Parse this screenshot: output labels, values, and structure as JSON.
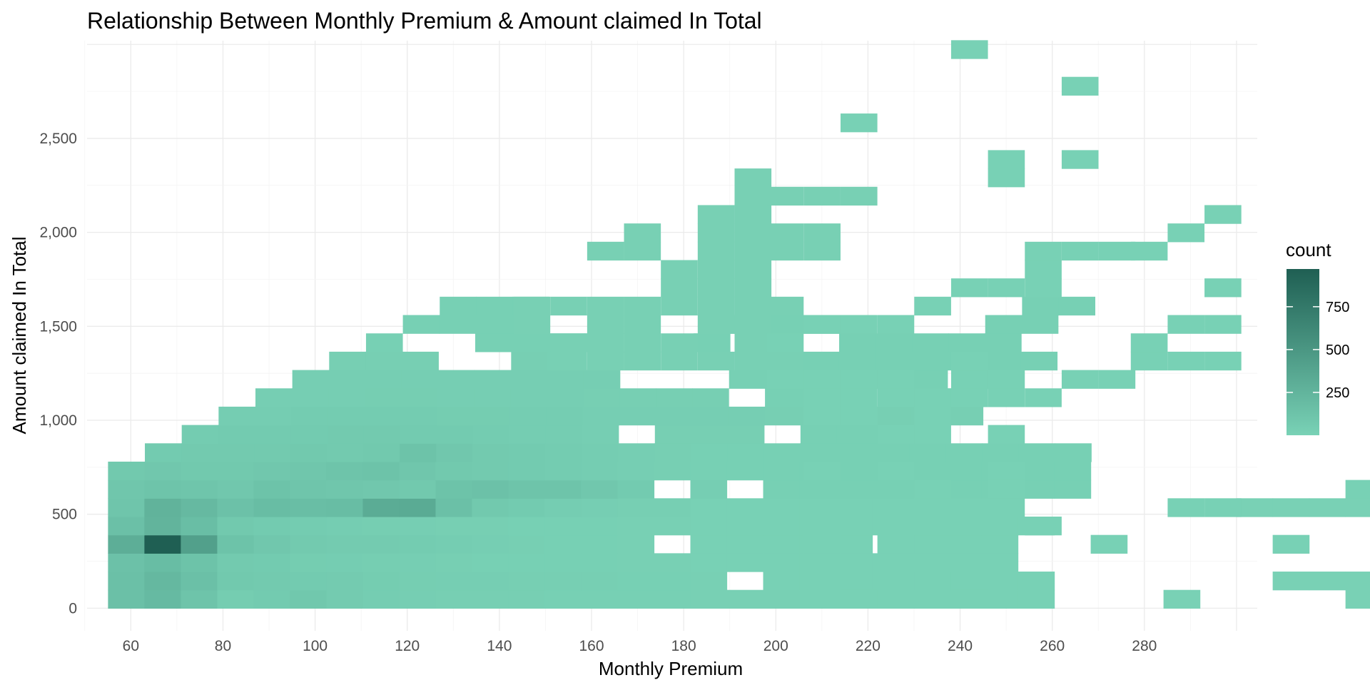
{
  "chart_data": {
    "type": "heatmap",
    "title": "Relationship Between Monthly Premium & Amount claimed In Total",
    "xlabel": "Monthly Premium",
    "ylabel": "Amount claimed In Total",
    "xlim": [
      50.5,
      304.5
    ],
    "ylim": [
      -120,
      3020
    ],
    "x_ticks": [
      60,
      80,
      100,
      120,
      140,
      160,
      180,
      200,
      220,
      240,
      260,
      280
    ],
    "x_tick_labels": [
      "60",
      "80",
      "100",
      "120",
      "140",
      "160",
      "180",
      "200",
      "220",
      "240",
      "260",
      "280"
    ],
    "y_ticks": [
      0,
      500,
      1000,
      1500,
      2000,
      2500
    ],
    "y_tick_labels": [
      "0",
      "500",
      "1,000",
      "1,500",
      "2,000",
      "2,500"
    ],
    "bin_width_x": 7.9,
    "bin_width_y": 97.5,
    "grid": true,
    "legend": {
      "title": "count",
      "placement": "right",
      "min": 0,
      "max": 970,
      "ticks": [
        250,
        500,
        750
      ],
      "tick_labels": [
        "250",
        "500",
        "750"
      ],
      "color_low": "#79D2B6",
      "color_high": "#1F5F53"
    },
    "rows": [
      {
        "y": 48.75,
        "start_x": 59.0,
        "counts": [
          150,
          200,
          120,
          45,
          60,
          85,
          55,
          40,
          30,
          25,
          25,
          25,
          20,
          20,
          20,
          20,
          15,
          15,
          15,
          12,
          10,
          10,
          10,
          10,
          10,
          10,
          0,
          0,
          0,
          5,
          0,
          0,
          0,
          0,
          5,
          0
        ]
      },
      {
        "y": 146.25,
        "start_x": 59.0,
        "counts": [
          150,
          220,
          150,
          80,
          70,
          60,
          55,
          45,
          35,
          30,
          30,
          25,
          25,
          25,
          20,
          20,
          15,
          0,
          10,
          10,
          10,
          10,
          10,
          10,
          10,
          10,
          0,
          0,
          0,
          0,
          0,
          0,
          5,
          5,
          5,
          0
        ]
      },
      {
        "y": 243.75,
        "start_x": 59.0,
        "counts": [
          140,
          180,
          130,
          70,
          60,
          45,
          40,
          35,
          30,
          25,
          20,
          20,
          20,
          20,
          15,
          15,
          10,
          10,
          10,
          10,
          10,
          10,
          10,
          10,
          10,
          0,
          0,
          0,
          0,
          0,
          0,
          0,
          0,
          0,
          0,
          0
        ]
      },
      {
        "y": 341.25,
        "start_x": 59.0,
        "counts": [
          300,
          970,
          420,
          130,
          90,
          70,
          55,
          55,
          50,
          40,
          30,
          25,
          20,
          20,
          15,
          0,
          10,
          10,
          10,
          10,
          10,
          0,
          10,
          10,
          10,
          0,
          0,
          10,
          0,
          0,
          0,
          0,
          10,
          0,
          0,
          0
        ]
      },
      {
        "y": 438.75,
        "start_x": 59.0,
        "counts": [
          150,
          250,
          170,
          80,
          60,
          50,
          40,
          35,
          30,
          25,
          25,
          20,
          20,
          20,
          15,
          15,
          10,
          10,
          10,
          10,
          10,
          10,
          10,
          10,
          10,
          10,
          0,
          0,
          0,
          0,
          0,
          0,
          0,
          0,
          0,
          0
        ]
      },
      {
        "y": 536.25,
        "start_x": 59.0,
        "counts": [
          110,
          260,
          210,
          140,
          180,
          170,
          180,
          320,
          330,
          150,
          80,
          60,
          40,
          30,
          25,
          25,
          10,
          10,
          10,
          10,
          10,
          10,
          10,
          10,
          10,
          0,
          0,
          0,
          0,
          0,
          0,
          5,
          5,
          5,
          5,
          0,
          0,
          0,
          0,
          0,
          0,
          0,
          0,
          0,
          0,
          0,
          0,
          0,
          0,
          0,
          0,
          0,
          0,
          0,
          0,
          0,
          0,
          0,
          0,
          0,
          0,
          0,
          0,
          0,
          0,
          0,
          0
        ]
      },
      {
        "y": 633.75,
        "start_x": 59.0,
        "counts": [
          100,
          120,
          110,
          90,
          130,
          110,
          100,
          90,
          80,
          130,
          140,
          120,
          120,
          90,
          60,
          0,
          30,
          0,
          20,
          20,
          20,
          20,
          20,
          20,
          20,
          20,
          20,
          0,
          0,
          0,
          0,
          0,
          0,
          0,
          10,
          0
        ]
      },
      {
        "y": 731.25,
        "start_x": 59.0,
        "counts": [
          80,
          90,
          80,
          80,
          90,
          100,
          120,
          130,
          100,
          80,
          70,
          60,
          50,
          40,
          30,
          25,
          20,
          20,
          20,
          20,
          20,
          20,
          20,
          20,
          20,
          20,
          20,
          0,
          0,
          0,
          0,
          0,
          0,
          0,
          0,
          0,
          0,
          0,
          0,
          0,
          0,
          0,
          0,
          0,
          0,
          0,
          0,
          0,
          0,
          0,
          0,
          0,
          0,
          0,
          0,
          0,
          0,
          0,
          0,
          0,
          0,
          0,
          0,
          0,
          0,
          0,
          0
        ]
      },
      {
        "y": 828.75,
        "start_x": 67.0,
        "counts": [
          60,
          70,
          70,
          70,
          80,
          70,
          80,
          130,
          90,
          70,
          60,
          50,
          40,
          30,
          25,
          20,
          20,
          20,
          20,
          20,
          20,
          20,
          20,
          20,
          20,
          20,
          0
        ]
      },
      {
        "y": 926.25,
        "start_x": 75.0,
        "counts": [
          50,
          60,
          60,
          60,
          70,
          70,
          60,
          60,
          50,
          40,
          40,
          30,
          0,
          25,
          25,
          25,
          0,
          20,
          20,
          20,
          20
        ]
      },
      {
        "y": 1023.75,
        "start_x": 83.0,
        "counts": [
          40,
          40,
          50,
          50,
          50,
          50,
          45,
          45,
          40,
          40,
          30,
          30,
          30,
          30,
          30,
          25,
          25,
          25,
          25,
          25,
          25
        ]
      },
      {
        "y": 1121.25,
        "start_x": 91.0,
        "counts": [
          30,
          30,
          30,
          35,
          35,
          30,
          30,
          30,
          30,
          25,
          25,
          25,
          25,
          0,
          20,
          20,
          20,
          0,
          20,
          20
        ]
      },
      {
        "y": 1218.75,
        "start_x": 99.0,
        "counts": [
          30,
          30,
          30,
          30,
          30,
          30,
          30,
          30,
          30,
          0,
          0,
          0,
          20,
          20,
          20,
          20,
          20,
          20,
          0,
          20
        ]
      },
      {
        "y": 1316.25,
        "start_x": 107.0,
        "counts": [
          25,
          25,
          25,
          0,
          0,
          25,
          20,
          0,
          0,
          0,
          0,
          0,
          0,
          20,
          20,
          20,
          20,
          20,
          20,
          20
        ]
      },
      {
        "y": 1413.75,
        "start_x": 115.0,
        "counts": [
          20,
          0,
          0,
          20,
          20,
          20,
          20,
          0,
          0,
          20,
          0,
          0,
          0,
          20,
          20,
          20,
          20,
          20,
          0,
          0
        ]
      },
      {
        "y": 1511.25,
        "start_x": 123.0,
        "counts": [
          20,
          20,
          20,
          20,
          0,
          0,
          0,
          0,
          0,
          20,
          20,
          20,
          20,
          0,
          0,
          0,
          20,
          20
        ]
      },
      {
        "y": 1608.75,
        "start_x": 131.0,
        "counts": [
          20,
          20,
          20,
          0,
          0,
          0,
          0,
          0,
          0,
          0,
          0,
          0,
          0,
          0,
          0,
          0,
          20,
          20
        ]
      }
    ],
    "sparse_cells": [
      [
        210.0,
        1121.25
      ],
      [
        218.0,
        1121.25
      ],
      [
        226.0,
        1121.25
      ],
      [
        234.0,
        1121.25
      ],
      [
        242.0,
        1121.25
      ],
      [
        250.0,
        1121.25
      ],
      [
        258.0,
        1121.25
      ],
      [
        210.0,
        1023.75
      ],
      [
        218.0,
        1023.75
      ],
      [
        234.0,
        1023.75
      ],
      [
        226.0,
        926.25
      ],
      [
        234.0,
        926.25
      ],
      [
        250.0,
        926.25
      ],
      [
        210.0,
        731.25
      ],
      [
        226.0,
        731.25
      ],
      [
        250.0,
        731.25
      ],
      [
        234.0,
        633.75
      ],
      [
        250.0,
        633.75
      ],
      [
        242.0,
        536.25
      ],
      [
        250.0,
        536.25
      ],
      [
        289.0,
        536.25
      ],
      [
        297.0,
        536.25
      ],
      [
        258.0,
        438.75
      ],
      [
        210.0,
        341.25
      ],
      [
        226.0,
        341.25
      ],
      [
        234.0,
        146.25
      ],
      [
        242.0,
        146.25
      ],
      [
        218.0,
        48.75
      ],
      [
        242.0,
        48.75
      ],
      [
        202.0,
        1218.75
      ],
      [
        210.0,
        1218.75
      ],
      [
        218.0,
        1218.75
      ],
      [
        226.0,
        1218.75
      ],
      [
        242.0,
        1218.75
      ],
      [
        250.0,
        1218.75
      ],
      [
        266.0,
        1218.75
      ],
      [
        274.0,
        1218.75
      ],
      [
        242.0,
        1316.25
      ],
      [
        281.0,
        1316.25
      ],
      [
        289.0,
        1316.25
      ],
      [
        297.0,
        1316.25
      ],
      [
        202.0,
        1413.75
      ],
      [
        281.0,
        1413.75
      ],
      [
        210.0,
        1511.25
      ],
      [
        218.0,
        1511.25
      ],
      [
        226.0,
        1511.25
      ],
      [
        289.0,
        1511.25
      ],
      [
        297.0,
        1511.25
      ],
      [
        234.0,
        1608.75
      ],
      [
        242.0,
        1706.25
      ],
      [
        250.0,
        1706.25
      ],
      [
        258.0,
        1706.25
      ],
      [
        297.0,
        1706.25
      ],
      [
        258.0,
        1803.75
      ],
      [
        258.0,
        1901.25
      ],
      [
        266.0,
        1901.25
      ],
      [
        274.0,
        1901.25
      ],
      [
        281.0,
        1901.25
      ],
      [
        289.0,
        1998.75
      ],
      [
        297.0,
        2096.25
      ],
      [
        250.0,
        2291.25
      ],
      [
        250.0,
        2388.75
      ],
      [
        266.0,
        2388.75
      ],
      [
        218.0,
        2583.75
      ],
      [
        266.0,
        2778.75
      ],
      [
        242.0,
        2973.75
      ]
    ],
    "upper_cells": [
      [
        179.0,
        1706.25
      ],
      [
        187.0,
        1706.25
      ],
      [
        195.0,
        1706.25
      ],
      [
        179.0,
        1803.75
      ],
      [
        187.0,
        1803.75
      ],
      [
        195.0,
        1803.75
      ],
      [
        163.0,
        1901.25
      ],
      [
        171.0,
        1901.25
      ],
      [
        187.0,
        1901.25
      ],
      [
        195.0,
        1901.25
      ],
      [
        202.0,
        1901.25
      ],
      [
        210.0,
        1901.25
      ],
      [
        171.0,
        1998.75
      ],
      [
        187.0,
        1998.75
      ],
      [
        195.0,
        1998.75
      ],
      [
        202.0,
        1998.75
      ],
      [
        210.0,
        1998.75
      ],
      [
        187.0,
        2096.25
      ],
      [
        195.0,
        2096.25
      ],
      [
        195.0,
        2193.75
      ],
      [
        202.0,
        2193.75
      ],
      [
        210.0,
        2193.75
      ],
      [
        218.0,
        2193.75
      ],
      [
        195.0,
        2291.25
      ],
      [
        147.0,
        1608.75
      ],
      [
        155.0,
        1608.75
      ],
      [
        163.0,
        1608.75
      ],
      [
        171.0,
        1608.75
      ],
      [
        179.0,
        1608.75
      ],
      [
        187.0,
        1608.75
      ],
      [
        195.0,
        1608.75
      ],
      [
        202.0,
        1608.75
      ],
      [
        147.0,
        1511.25
      ],
      [
        163.0,
        1511.25
      ],
      [
        171.0,
        1511.25
      ],
      [
        187.0,
        1511.25
      ],
      [
        195.0,
        1511.25
      ],
      [
        155.0,
        1413.75
      ],
      [
        163.0,
        1413.75
      ],
      [
        171.0,
        1413.75
      ],
      [
        179.0,
        1413.75
      ],
      [
        195.0,
        1413.75
      ],
      [
        155.0,
        1316.25
      ],
      [
        163.0,
        1316.25
      ],
      [
        171.0,
        1316.25
      ],
      [
        179.0,
        1316.25
      ],
      [
        187.0,
        1316.25
      ],
      [
        195.0,
        1316.25
      ],
      [
        202.0,
        1316.25
      ]
    ]
  }
}
